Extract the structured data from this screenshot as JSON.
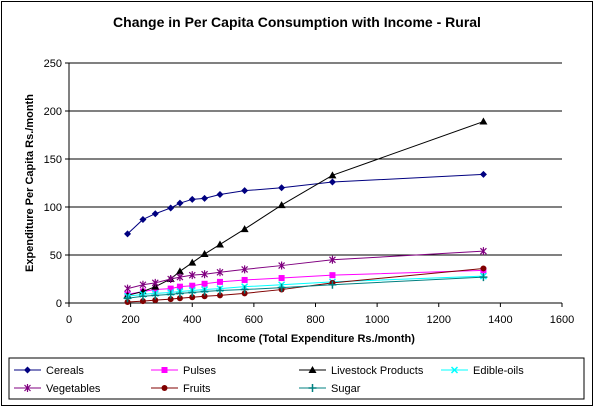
{
  "chart_data": {
    "type": "line",
    "title": "Change in Per Capita Consumption with Income - Rural",
    "xlabel": "Income (Total Expenditure Rs./month)",
    "ylabel": "Expenditure Per Capita Rs./month",
    "xlim": [
      0,
      1600
    ],
    "ylim": [
      0,
      250
    ],
    "x_ticks": [
      0,
      200,
      400,
      600,
      800,
      1000,
      1200,
      1400,
      1600
    ],
    "y_ticks": [
      0,
      50,
      100,
      150,
      200,
      250
    ],
    "grid": "horizontal",
    "legend_position": "bottom",
    "x": [
      190,
      240,
      280,
      330,
      360,
      400,
      440,
      490,
      570,
      690,
      855,
      1345
    ],
    "series": [
      {
        "name": "Cereals",
        "color": "#000080",
        "marker": "diamond",
        "values": [
          72,
          87,
          93,
          99,
          104,
          108,
          109,
          113,
          117,
          120,
          126,
          134
        ]
      },
      {
        "name": "Pulses",
        "color": "#FF00FF",
        "marker": "square",
        "values": [
          9,
          12,
          14,
          15,
          17,
          18,
          20,
          22,
          24,
          26,
          29,
          34
        ]
      },
      {
        "name": "Livestock Products",
        "color": "#000000",
        "marker": "triangle",
        "values": [
          8,
          12,
          17,
          25,
          33,
          42,
          51,
          61,
          77,
          102,
          133,
          189
        ]
      },
      {
        "name": "Edible-oils",
        "color": "#00FFFF",
        "marker": "x",
        "values": [
          7,
          9,
          10,
          11,
          12,
          13,
          14,
          15,
          17,
          19,
          22,
          28
        ]
      },
      {
        "name": "Vegetables",
        "color": "#800080",
        "marker": "star",
        "values": [
          15,
          19,
          21,
          25,
          27,
          29,
          30,
          32,
          35,
          39,
          45,
          54
        ]
      },
      {
        "name": "Fruits",
        "color": "#800000",
        "marker": "circle",
        "values": [
          1,
          2,
          3,
          4,
          5,
          6,
          7,
          8,
          10,
          14,
          21,
          36
        ]
      },
      {
        "name": "Sugar",
        "color": "#008080",
        "marker": "plus",
        "values": [
          5,
          7,
          8,
          9,
          10,
          11,
          12,
          13,
          14,
          16,
          19,
          27
        ]
      }
    ]
  }
}
